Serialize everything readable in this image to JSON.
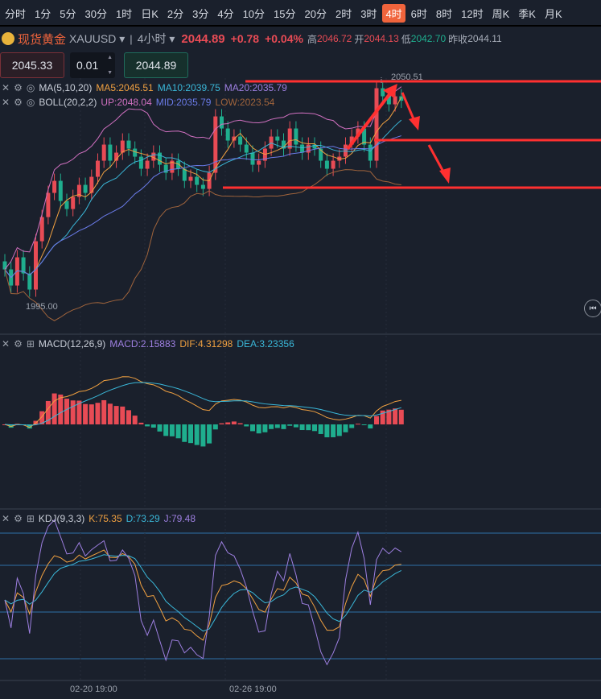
{
  "tabs": [
    "分时",
    "1分",
    "5分",
    "30分",
    "1时",
    "日K",
    "2分",
    "3分",
    "4分",
    "10分",
    "15分",
    "20分",
    "2时",
    "3时",
    "4时",
    "6时",
    "8时",
    "12时",
    "周K",
    "季K",
    "月K"
  ],
  "active_tab": "4时",
  "header": {
    "name": "现货黄金",
    "symbol": "XAUUSD",
    "period": "4小时",
    "price": "2044.89",
    "change": "+0.78",
    "change_pct": "+0.04%",
    "high_label": "高",
    "high": "2046.72",
    "open_label": "开",
    "open": "2044.13",
    "low_label": "低",
    "low": "2042.70",
    "prev_label": "昨收",
    "prev": "2044.11"
  },
  "order": {
    "sell": "2045.33",
    "qty": "0.01",
    "buy": "2044.89"
  },
  "indicators": {
    "ma": {
      "name": "MA(5,10,20)",
      "ma5": "MA5:2045.51",
      "ma10": "MA10:2039.75",
      "ma20": "MA20:2035.79"
    },
    "boll": {
      "name": "BOLL(20,2,2)",
      "up": "UP:2048.04",
      "mid": "MID:2035.79",
      "low": "LOW:2023.54"
    },
    "macd": {
      "name": "MACD(12,26,9)",
      "macd": "MACD:2.15883",
      "dif": "DIF:4.31298",
      "dea": "DEA:3.23356"
    },
    "kdj": {
      "name": "KDJ(9,3,3)",
      "k": "K:75.35",
      "d": "D:73.29",
      "j": "J:79.48"
    }
  },
  "price_labels": {
    "high": "2050.51",
    "low": "1995.00"
  },
  "time_labels": [
    "02-20 19:00",
    "02-26 19:00"
  ],
  "colors": {
    "up": "#e84b55",
    "down": "#1fae8e",
    "accent": "#f0643c",
    "ma5": "#f0a040",
    "ma10": "#3ab7d8",
    "ma20": "#9d7fe0",
    "up_band": "#d070c0",
    "mid": "#6a7be8",
    "low_band": "#a0643c",
    "annot": "#ff3030"
  },
  "chart_data": {
    "type": "candlestick",
    "closes": [
      2003,
      1999,
      2006,
      2002,
      1998,
      2010,
      2016,
      2022,
      2025,
      2020,
      2018,
      2021,
      2024,
      2022,
      2026,
      2030,
      2034,
      2030,
      2032,
      2035,
      2033,
      2031,
      2028,
      2030,
      2032,
      2029,
      2027,
      2030,
      2028,
      2025,
      2026,
      2024,
      2023,
      2027,
      2041,
      2038,
      2035,
      2036,
      2034,
      2032,
      2029,
      2030,
      2033,
      2036,
      2035,
      2033,
      2038,
      2034,
      2032,
      2034,
      2033,
      2030,
      2028,
      2030,
      2031,
      2034,
      2036,
      2038,
      2034,
      2030,
      2048,
      2046,
      2044,
      2046,
      2044.89
    ],
    "y_range": [
      1986.9,
      2050.51
    ]
  }
}
